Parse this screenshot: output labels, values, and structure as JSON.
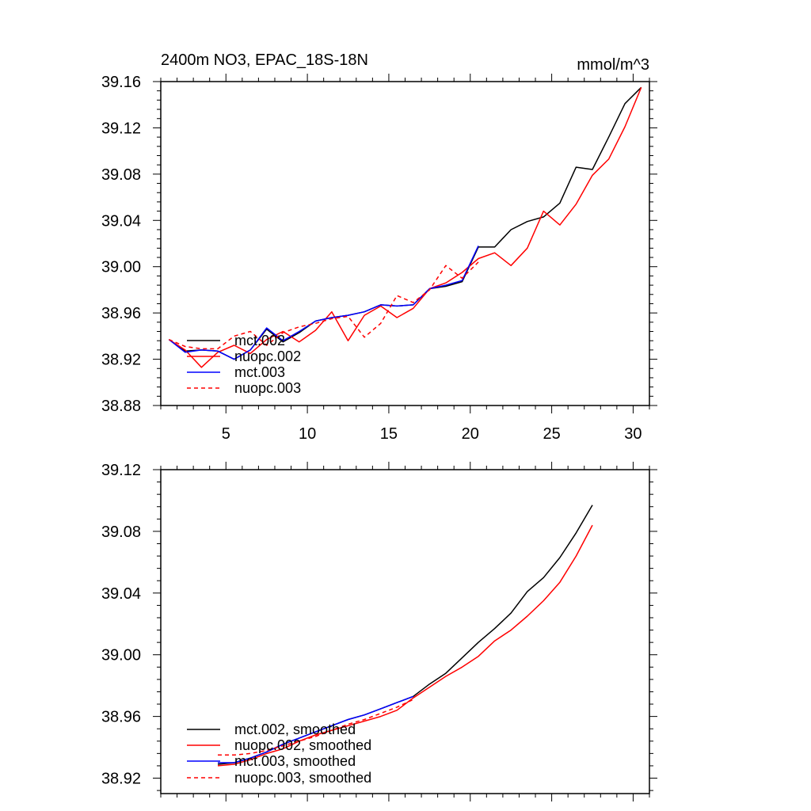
{
  "chart_data": [
    {
      "type": "line",
      "title": "2400m NO3, EPAC_18S-18N",
      "units": "mmol/m^3",
      "xlim": [
        1,
        31
      ],
      "ylim": [
        38.88,
        39.16
      ],
      "xticks": [
        5,
        10,
        15,
        20,
        25,
        30
      ],
      "xticklabels": [
        "5",
        "10",
        "15",
        "20",
        "25",
        "30"
      ],
      "yticks": [
        38.88,
        38.92,
        38.96,
        39.0,
        39.04,
        39.08,
        39.12,
        39.16
      ],
      "yticklabels": [
        "38.88",
        "38.92",
        "38.96",
        "39.00",
        "39.04",
        "39.08",
        "39.12",
        "39.16"
      ],
      "legend_position": "bottom-left",
      "series": [
        {
          "name": "mct.002",
          "color": "#000000",
          "dash": "solid",
          "x": [
            1.5,
            2.5,
            3.5,
            4.5,
            5.5,
            6.5,
            7.5,
            8.5,
            9.5,
            10.5,
            11.5,
            12.5,
            13.5,
            14.5,
            15.5,
            16.5,
            17.5,
            18.5,
            19.5,
            20.5,
            21.5,
            22.5,
            23.5,
            24.5,
            25.5,
            26.5,
            27.5,
            28.5,
            29.5,
            30.5
          ],
          "values": [
            38.937,
            38.927,
            38.928,
            38.927,
            38.92,
            38.928,
            38.946,
            38.935,
            38.943,
            38.953,
            38.956,
            38.958,
            38.961,
            38.967,
            38.966,
            38.967,
            38.981,
            38.983,
            38.987,
            39.017,
            39.017,
            39.032,
            39.039,
            39.043,
            39.055,
            39.086,
            39.084,
            39.112,
            39.141,
            39.155
          ]
        },
        {
          "name": "nuopc.002",
          "color": "#ff0000",
          "dash": "solid",
          "x": [
            1.5,
            2.5,
            3.5,
            4.5,
            5.5,
            6.5,
            7.5,
            8.5,
            9.5,
            10.5,
            11.5,
            12.5,
            13.5,
            14.5,
            15.5,
            16.5,
            17.5,
            18.5,
            19.5,
            20.5,
            21.5,
            22.5,
            23.5,
            24.5,
            25.5,
            26.5,
            27.5,
            28.5,
            29.5,
            30.5
          ],
          "values": [
            38.937,
            38.928,
            38.913,
            38.926,
            38.932,
            38.925,
            38.937,
            38.944,
            38.935,
            38.945,
            38.961,
            38.936,
            38.958,
            38.966,
            38.956,
            38.964,
            38.981,
            38.986,
            38.995,
            39.007,
            39.012,
            39.001,
            39.016,
            39.048,
            39.036,
            39.054,
            39.079,
            39.093,
            39.121,
            39.155
          ]
        },
        {
          "name": "mct.003",
          "color": "#0000ff",
          "dash": "solid",
          "x": [
            1.5,
            2.5,
            3.5,
            4.5,
            5.5,
            6.5,
            7.5,
            8.5,
            9.5,
            10.5,
            11.5,
            12.5,
            13.5,
            14.5,
            15.5,
            16.5,
            17.5,
            18.5,
            19.5,
            20.5
          ],
          "values": [
            38.937,
            38.926,
            38.928,
            38.927,
            38.92,
            38.928,
            38.947,
            38.936,
            38.944,
            38.953,
            38.956,
            38.958,
            38.961,
            38.967,
            38.966,
            38.967,
            38.981,
            38.984,
            38.988,
            39.018
          ]
        },
        {
          "name": "nuopc.003",
          "color": "#ff0000",
          "dash": "dashed",
          "x": [
            1.5,
            2.5,
            3.5,
            4.5,
            5.5,
            6.5,
            7.5,
            8.5,
            9.5,
            10.5,
            11.5,
            12.5,
            13.5,
            14.5,
            15.5,
            16.5,
            17.5,
            18.5,
            19.5,
            20.5
          ],
          "values": [
            38.937,
            38.931,
            38.929,
            38.929,
            38.94,
            38.944,
            38.932,
            38.943,
            38.948,
            38.951,
            38.955,
            38.957,
            38.939,
            38.951,
            38.975,
            38.969,
            38.98,
            39.001,
            38.99,
            39.004
          ]
        }
      ]
    },
    {
      "type": "line",
      "title": "",
      "xlim": [
        1,
        31
      ],
      "ylim": [
        38.91,
        39.12
      ],
      "xticks": [
        5,
        10,
        15,
        20,
        25,
        30
      ],
      "xticklabels": [],
      "yticks": [
        38.92,
        38.96,
        39.0,
        39.04,
        39.08,
        39.12
      ],
      "yticklabels": [
        "38.92",
        "38.96",
        "39.00",
        "39.04",
        "39.08",
        "39.12"
      ],
      "legend_position": "bottom-left",
      "series": [
        {
          "name": "mct.002, smoothed",
          "color": "#000000",
          "dash": "solid",
          "x": [
            4.5,
            5.5,
            6.5,
            7.5,
            8.5,
            9.5,
            10.5,
            11.5,
            12.5,
            13.5,
            14.5,
            15.5,
            16.5,
            17.5,
            18.5,
            19.5,
            20.5,
            21.5,
            22.5,
            23.5,
            24.5,
            25.5,
            26.5,
            27.5
          ],
          "values": [
            38.929,
            38.93,
            38.933,
            38.937,
            38.942,
            38.946,
            38.95,
            38.954,
            38.958,
            38.961,
            38.965,
            38.969,
            38.973,
            38.981,
            38.988,
            38.998,
            39.008,
            39.017,
            39.027,
            39.041,
            39.05,
            39.063,
            39.079,
            39.097
          ]
        },
        {
          "name": "nuopc.002, smoothed",
          "color": "#ff0000",
          "dash": "solid",
          "x": [
            4.5,
            5.5,
            6.5,
            7.5,
            8.5,
            9.5,
            10.5,
            11.5,
            12.5,
            13.5,
            14.5,
            15.5,
            16.5,
            17.5,
            18.5,
            19.5,
            20.5,
            21.5,
            22.5,
            23.5,
            24.5,
            25.5,
            26.5,
            27.5
          ],
          "values": [
            38.928,
            38.929,
            38.932,
            38.936,
            38.939,
            38.944,
            38.948,
            38.951,
            38.954,
            38.957,
            38.96,
            38.964,
            38.972,
            38.979,
            38.986,
            38.992,
            38.999,
            39.009,
            39.016,
            39.025,
            39.035,
            39.047,
            39.064,
            39.084
          ]
        },
        {
          "name": "mct.003, smoothed",
          "color": "#0000ff",
          "dash": "solid",
          "x": [
            4.5,
            5.5,
            6.5,
            7.5,
            8.5,
            9.5,
            10.5,
            11.5,
            12.5,
            13.5,
            14.5,
            15.5,
            16.5
          ],
          "values": [
            38.93,
            38.93,
            38.933,
            38.937,
            38.942,
            38.946,
            38.95,
            38.954,
            38.958,
            38.961,
            38.965,
            38.969,
            38.973
          ]
        },
        {
          "name": "nuopc.003, smoothed",
          "color": "#ff0000",
          "dash": "dashed",
          "x": [
            4.5,
            5.5,
            6.5,
            7.5,
            8.5,
            9.5,
            10.5,
            11.5,
            12.5,
            13.5,
            14.5,
            15.5,
            16.5
          ],
          "values": [
            38.935,
            38.935,
            38.936,
            38.938,
            38.941,
            38.944,
            38.947,
            38.951,
            38.955,
            38.958,
            38.962,
            38.966,
            38.971
          ]
        }
      ]
    }
  ]
}
